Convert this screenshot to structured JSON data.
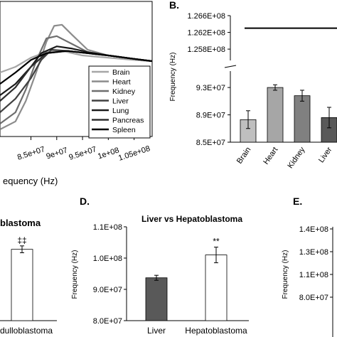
{
  "chart_data": [
    {
      "panel": "",
      "type": "line",
      "xlabel": "equency (Hz)",
      "x_ticks": [
        "8.5e+07",
        "9e+07",
        "9.5e+07",
        "1e+08",
        "1.05e+08"
      ],
      "x_tick_values": [
        85000000,
        90000000,
        95000000,
        100000000,
        105000000
      ],
      "xlim": [
        79000000,
        108500000
      ],
      "ylim": [
        0,
        1
      ],
      "legend_position": "bottom-right",
      "series": [
        {
          "name": "Brain",
          "color": "#a6a6a6",
          "x": [
            79000000,
            82000000,
            85000000,
            88000000,
            91000000,
            95000000,
            100000000,
            105000000,
            108500000
          ],
          "y": [
            0.55,
            0.6,
            0.68,
            0.73,
            0.74,
            0.7,
            0.68,
            0.66,
            0.65
          ]
        },
        {
          "name": "Heart",
          "color": "#8c8c8c",
          "x": [
            79000000,
            82000000,
            84000000,
            86000000,
            88000000,
            89500000,
            91000000,
            93000000,
            96000000,
            100000000,
            105000000,
            108500000
          ],
          "y": [
            0.05,
            0.12,
            0.3,
            0.55,
            0.82,
            0.96,
            0.97,
            0.88,
            0.75,
            0.7,
            0.67,
            0.65
          ]
        },
        {
          "name": "Kidney",
          "color": "#6e6e6e",
          "x": [
            79000000,
            82000000,
            84000000,
            86000000,
            88000000,
            90000000,
            93000000,
            96000000,
            100000000,
            105000000,
            108500000
          ],
          "y": [
            0.1,
            0.2,
            0.4,
            0.65,
            0.85,
            0.87,
            0.8,
            0.73,
            0.7,
            0.67,
            0.65
          ]
        },
        {
          "name": "Liver",
          "color": "#404040",
          "x": [
            79000000,
            82000000,
            85000000,
            87000000,
            89000000,
            92000000,
            96000000,
            100000000,
            105000000,
            108500000
          ],
          "y": [
            0.2,
            0.32,
            0.5,
            0.66,
            0.75,
            0.74,
            0.72,
            0.7,
            0.67,
            0.65
          ]
        },
        {
          "name": "Lung",
          "color": "#1a1a1a",
          "x": [
            79000000,
            82000000,
            85000000,
            87000000,
            90000000,
            93000000,
            96000000,
            100000000,
            105000000,
            108500000
          ],
          "y": [
            0.35,
            0.45,
            0.6,
            0.72,
            0.78,
            0.76,
            0.73,
            0.7,
            0.67,
            0.65
          ]
        },
        {
          "name": "Pancreas",
          "color": "#2e2e2e",
          "x": [
            79000000,
            82000000,
            85000000,
            88000000,
            92000000,
            96000000,
            100000000,
            105000000,
            108500000
          ],
          "y": [
            0.3,
            0.42,
            0.6,
            0.72,
            0.74,
            0.72,
            0.7,
            0.67,
            0.65
          ]
        },
        {
          "name": "Spleen",
          "color": "#000000",
          "x": [
            79000000,
            82000000,
            85000000,
            88000000,
            92000000,
            96000000,
            100000000,
            105000000,
            108500000
          ],
          "y": [
            0.45,
            0.55,
            0.66,
            0.72,
            0.74,
            0.72,
            0.7,
            0.67,
            0.65
          ]
        }
      ]
    },
    {
      "panel": "B.",
      "type": "bar",
      "ylabel": "Frequency (Hz)",
      "categories": [
        "Brain",
        "Heart",
        "Kidney",
        "Liver"
      ],
      "values": [
        88300000,
        93000000,
        91800000,
        88600000
      ],
      "errors": [
        1300000,
        400000,
        800000,
        1500000
      ],
      "colors": [
        "#bfbfbf",
        "#a6a6a6",
        "#808080",
        "#595959"
      ],
      "y_ticks_lower": [
        "8.5E+07",
        "8.9E+07",
        "9.3E+07"
      ],
      "y_tick_values_lower": [
        85000000,
        89000000,
        93000000
      ],
      "ylim_lower": [
        85000000,
        95400000
      ],
      "y_ticks_upper": [
        "1.258E+08",
        "1.262E+08",
        "1.266E+08"
      ],
      "y_tick_values_upper": [
        125800000,
        126200000,
        126600000
      ],
      "ylim_upper": [
        125530000,
        126600000
      ],
      "reference_line_value": 126300000
    },
    {
      "panel": "",
      "type": "bar",
      "title": "blastoma",
      "categories": [
        "dulloblastoma"
      ],
      "values": [
        102800000
      ],
      "errors": [
        1100000
      ],
      "colors": [
        "#ffffff"
      ],
      "ylim": [
        80000000,
        110000000
      ],
      "annotations": [
        "‡‡"
      ]
    },
    {
      "panel": "D.",
      "type": "bar",
      "title": "Liver vs Hepatoblastoma",
      "ylabel": "Frequency (Hz)",
      "categories": [
        "Liver",
        "Hepatoblastoma"
      ],
      "values": [
        93700000,
        101000000
      ],
      "errors": [
        800000,
        2500000
      ],
      "colors": [
        "#595959",
        "#ffffff"
      ],
      "y_ticks": [
        "8.0E+07",
        "9.0E+07",
        "1.0E+08",
        "1.1E+08"
      ],
      "y_tick_values": [
        80000000,
        90000000,
        100000000,
        110000000
      ],
      "ylim": [
        80000000,
        110000000
      ],
      "annotations": [
        "",
        "**"
      ]
    },
    {
      "panel": "E.",
      "type": "bar",
      "ylabel": "Frequency (Hz)",
      "y_ticks": [
        "8.0E+07",
        "1.1E+08",
        "1.3E+08",
        "1.4E+08"
      ],
      "y_tick_values": [
        80000000,
        110000000,
        130000000,
        140000000
      ]
    }
  ]
}
